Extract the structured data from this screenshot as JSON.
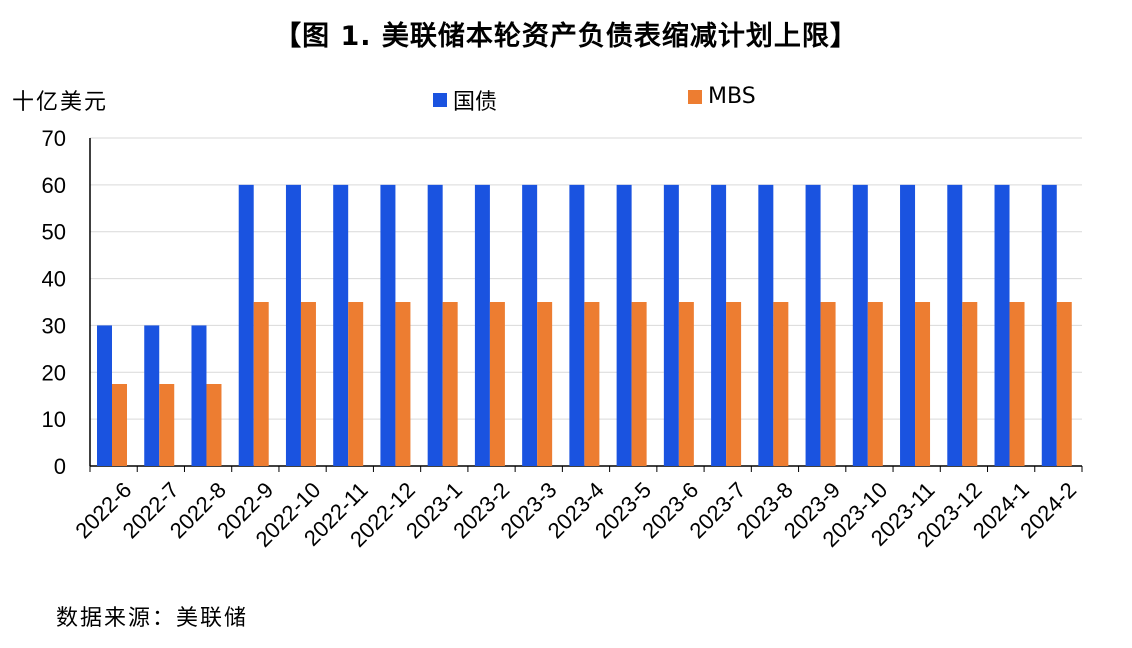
{
  "header": {
    "title": "【图 1. 美联储本轮资产负债表缩减计划上限】",
    "unit": "十亿美元"
  },
  "footer": {
    "source": "数据来源：美联储"
  },
  "colors": {
    "treasury": "#1a53e0",
    "mbs": "#ed7d31",
    "grid": "#d9d9d9",
    "axis": "#000000"
  },
  "chart_data": {
    "type": "bar",
    "title": "【图 1. 美联储本轮资产负债表缩减计划上限】",
    "ylabel": "十亿美元",
    "xlabel": "",
    "ylim": [
      0,
      70
    ],
    "yticks": [
      0,
      10,
      20,
      30,
      40,
      50,
      60,
      70
    ],
    "grid": "horizontal",
    "legend": "top",
    "categories": [
      "2022-6",
      "2022-7",
      "2022-8",
      "2022-9",
      "2022-10",
      "2022-11",
      "2022-12",
      "2023-1",
      "2023-2",
      "2023-3",
      "2023-4",
      "2023-5",
      "2023-6",
      "2023-7",
      "2023-8",
      "2023-9",
      "2023-10",
      "2023-11",
      "2023-12",
      "2024-1",
      "2024-2"
    ],
    "series": [
      {
        "name": "国债",
        "color": "#1a53e0",
        "values": [
          30,
          30,
          30,
          60,
          60,
          60,
          60,
          60,
          60,
          60,
          60,
          60,
          60,
          60,
          60,
          60,
          60,
          60,
          60,
          60,
          60
        ]
      },
      {
        "name": "MBS",
        "color": "#ed7d31",
        "values": [
          17.5,
          17.5,
          17.5,
          35,
          35,
          35,
          35,
          35,
          35,
          35,
          35,
          35,
          35,
          35,
          35,
          35,
          35,
          35,
          35,
          35,
          35
        ]
      }
    ]
  }
}
